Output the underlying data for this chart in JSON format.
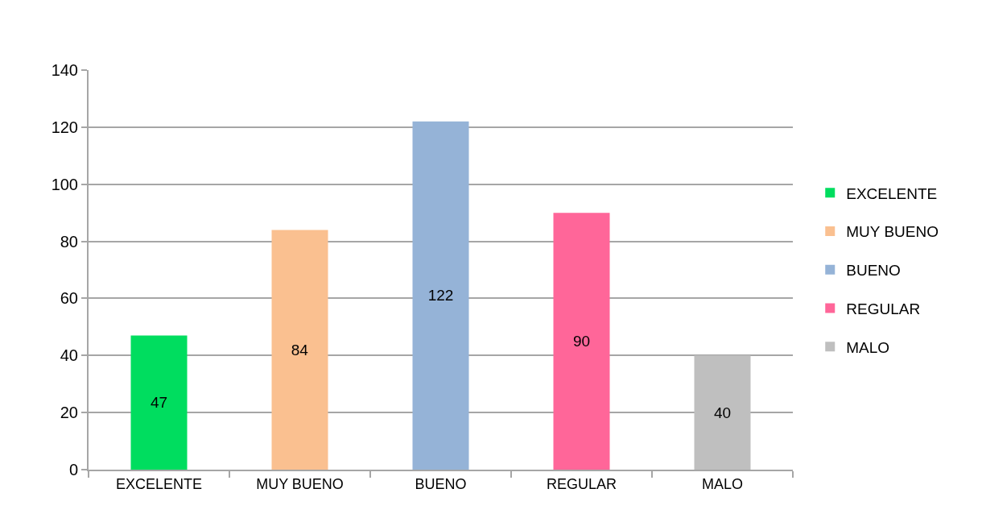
{
  "chart_data": {
    "type": "bar",
    "categories": [
      "EXCELENTE",
      "MUY BUENO",
      "BUENO",
      "REGULAR",
      "MALO"
    ],
    "series": [
      {
        "name": "EXCELENTE",
        "color": "#00dd5f",
        "values": [
          47,
          null,
          null,
          null,
          null
        ]
      },
      {
        "name": "MUY BUENO",
        "color": "#fac090",
        "values": [
          null,
          84,
          null,
          null,
          null
        ]
      },
      {
        "name": "BUENO",
        "color": "#95b3d7",
        "values": [
          null,
          null,
          122,
          null,
          null
        ]
      },
      {
        "name": "REGULAR",
        "color": "#ff6699",
        "values": [
          null,
          null,
          null,
          90,
          null
        ]
      },
      {
        "name": "MALO",
        "color": "#bfbfbf",
        "values": [
          null,
          null,
          null,
          null,
          40
        ]
      }
    ],
    "ylim": [
      0,
      140
    ],
    "yticks": [
      0,
      20,
      40,
      60,
      80,
      100,
      120,
      140
    ],
    "grid": "y",
    "legend": "right",
    "data_labels": true
  }
}
